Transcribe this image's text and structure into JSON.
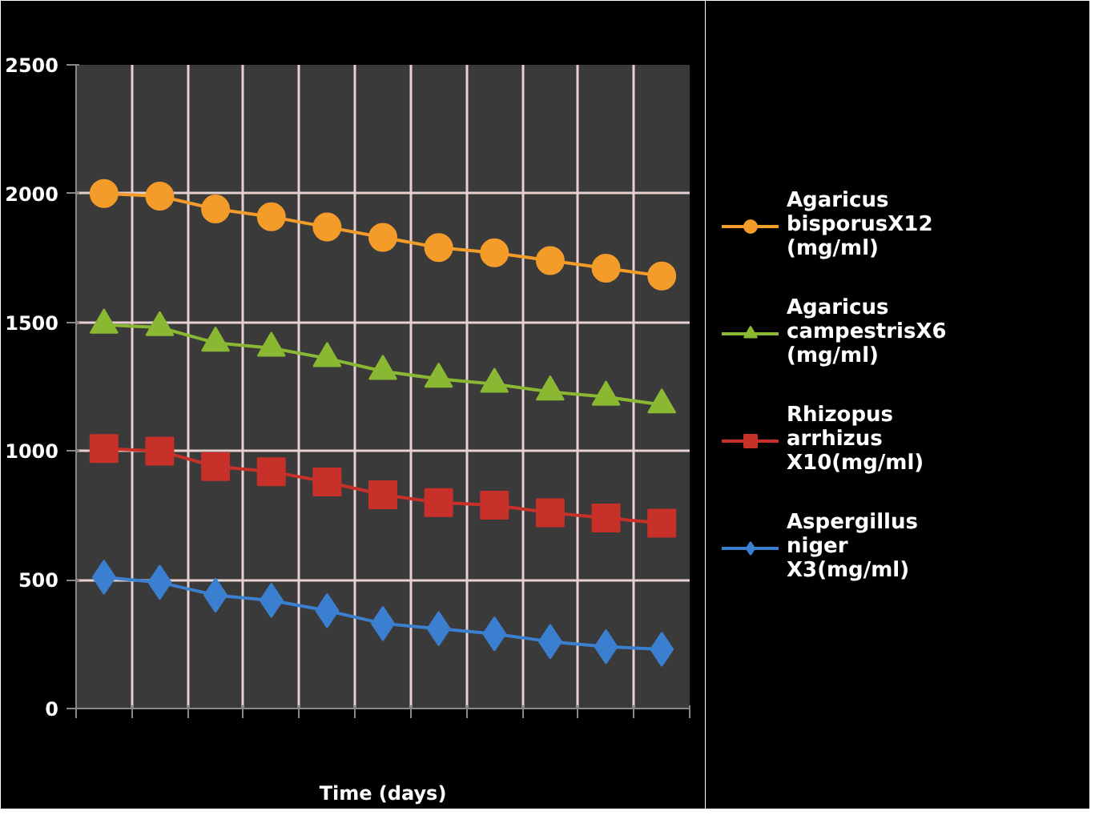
{
  "chart_data": {
    "type": "line",
    "xlabel": "Time (days)",
    "categories": [
      null,
      null,
      null,
      null,
      null,
      null,
      null,
      null,
      null,
      null,
      null
    ],
    "ylim": [
      0,
      2500
    ],
    "yticks": [
      0,
      500,
      1000,
      1500,
      2000,
      2500
    ],
    "grid": true,
    "legend": "right",
    "line_style": "solid",
    "series": [
      {
        "name": "Agaricus bisporusX12 (mg/ml)",
        "color": "#f39c2a",
        "marker": "circle",
        "values": [
          2000,
          1990,
          1940,
          1910,
          1870,
          1830,
          1790,
          1770,
          1740,
          1710,
          1680
        ]
      },
      {
        "name": "Agaricus campestrisX6 (mg/ml)",
        "color": "#8ab833",
        "marker": "triangle",
        "values": [
          1490,
          1480,
          1420,
          1400,
          1360,
          1310,
          1280,
          1260,
          1230,
          1210,
          1180
        ]
      },
      {
        "name": "Rhizopus arrhizus X10(mg/ml)",
        "color": "#c8302a",
        "marker": "square",
        "values": [
          1010,
          1000,
          940,
          920,
          880,
          830,
          800,
          790,
          760,
          740,
          720
        ]
      },
      {
        "name": "Aspergillus niger X3(mg/ml)",
        "color": "#3b7fd0",
        "marker": "diamond",
        "values": [
          510,
          490,
          440,
          420,
          380,
          330,
          310,
          290,
          260,
          240,
          230
        ]
      }
    ]
  }
}
